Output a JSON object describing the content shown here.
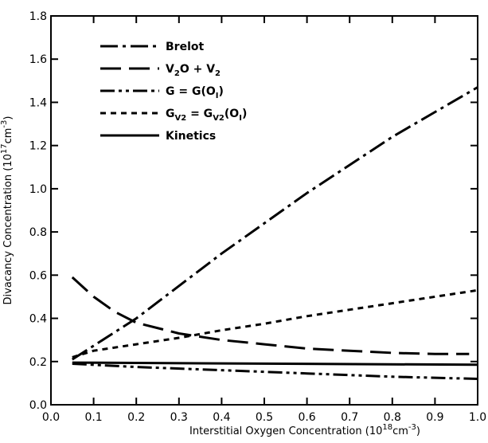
{
  "chart_data": {
    "type": "line",
    "title": "",
    "xlabel": "Interstitial Oxygen Concentration (10",
    "xlabel_sup": "18",
    "xlabel_units": "cm",
    "xlabel_units_sup": "-3",
    "xlabel_tail": ")",
    "ylabel": "Divacancy Concentration (10",
    "ylabel_sup": "17",
    "ylabel_units": "cm",
    "ylabel_units_sup": "-3",
    "ylabel_tail": ")",
    "xlim": [
      0.0,
      1.0
    ],
    "ylim": [
      0.0,
      1.8
    ],
    "x_ticks": [
      0.0,
      0.1,
      0.2,
      0.3,
      0.4,
      0.5,
      0.6,
      0.7,
      0.8,
      0.9,
      1.0
    ],
    "x_tick_labels": [
      "0.0",
      "0.1",
      "0.2",
      "0.3",
      "0.4",
      "0.5",
      "0.6",
      "0.7",
      "0.8",
      "0.9",
      "1.0"
    ],
    "y_ticks": [
      0.0,
      0.2,
      0.4,
      0.6,
      0.8,
      1.0,
      1.2,
      1.4,
      1.6,
      1.8
    ],
    "y_tick_labels": [
      "0.0",
      "0.2",
      "0.4",
      "0.6",
      "0.8",
      "1.0",
      "1.2",
      "1.4",
      "1.6",
      "1.8"
    ],
    "grid": false,
    "legend_position": "top-left",
    "series": [
      {
        "name": "Brelot",
        "dash": "dash-dot",
        "x": [
          0.05,
          0.2,
          0.4,
          0.6,
          0.8,
          1.0
        ],
        "y": [
          0.21,
          0.4,
          0.7,
          0.98,
          1.24,
          1.47
        ]
      },
      {
        "name": "V2O + V2",
        "name_parts": [
          [
            "V",
            ""
          ],
          [
            "2",
            "sub"
          ],
          [
            "O + V",
            ""
          ],
          [
            "2",
            "sub"
          ]
        ],
        "dash": "long-dash",
        "x": [
          0.05,
          0.1,
          0.15,
          0.2,
          0.3,
          0.4,
          0.5,
          0.6,
          0.7,
          0.8,
          0.9,
          0.98
        ],
        "y": [
          0.59,
          0.5,
          0.43,
          0.38,
          0.33,
          0.3,
          0.28,
          0.26,
          0.25,
          0.24,
          0.235,
          0.235
        ]
      },
      {
        "name": "G = G(OI)",
        "name_parts": [
          [
            "G = G(O",
            ""
          ],
          [
            "I",
            "sub"
          ],
          [
            ")",
            ""
          ]
        ],
        "dash": "dash-dot-dot",
        "x": [
          0.05,
          0.2,
          0.4,
          0.6,
          0.8,
          1.0
        ],
        "y": [
          0.19,
          0.175,
          0.16,
          0.145,
          0.13,
          0.12
        ]
      },
      {
        "name": "GV2 = GV2(OI)",
        "name_parts": [
          [
            "G",
            ""
          ],
          [
            "V2",
            "sub"
          ],
          [
            " = G",
            ""
          ],
          [
            "V2",
            "sub"
          ],
          [
            "(O",
            ""
          ],
          [
            "I",
            "sub"
          ],
          [
            ")",
            ""
          ]
        ],
        "dash": "short-dash",
        "x": [
          0.05,
          0.1,
          0.2,
          0.3,
          0.4,
          0.5,
          0.6,
          0.7,
          0.8,
          0.9,
          1.0
        ],
        "y": [
          0.22,
          0.25,
          0.28,
          0.31,
          0.345,
          0.375,
          0.41,
          0.44,
          0.47,
          0.5,
          0.53
        ]
      },
      {
        "name": "Kinetics",
        "dash": "solid",
        "x": [
          0.05,
          1.0
        ],
        "y": [
          0.195,
          0.185
        ]
      }
    ]
  }
}
